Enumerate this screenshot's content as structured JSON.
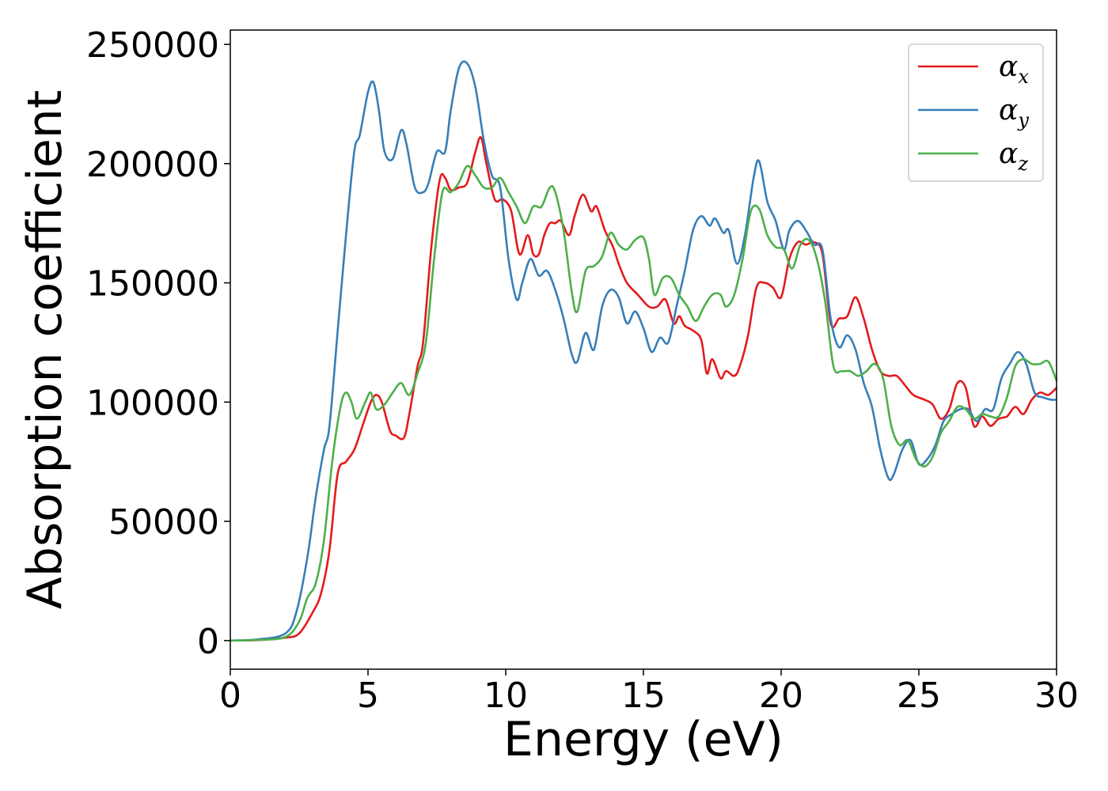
{
  "chart_data": {
    "type": "line",
    "title": "",
    "xlabel": "Energy (eV)",
    "ylabel": "Absorption coefficient",
    "xlim": [
      0,
      30
    ],
    "ylim": [
      -12000,
      256000
    ],
    "xticks": [
      0,
      5,
      10,
      15,
      20,
      25,
      30
    ],
    "yticks": [
      0,
      50000,
      100000,
      150000,
      200000,
      250000
    ],
    "grid": false,
    "legend_position": "top-right",
    "series": [
      {
        "name": "α",
        "subscript": "x",
        "color": "#e41a1c",
        "x": [
          0,
          1,
          2,
          2.5,
          3,
          3.3,
          3.6,
          3.9,
          4.2,
          4.5,
          4.8,
          5.1,
          5.3,
          5.5,
          5.8,
          6.0,
          6.3,
          6.5,
          6.8,
          7.0,
          7.3,
          7.6,
          7.8,
          8.0,
          8.3,
          8.6,
          8.9,
          9.1,
          9.3,
          9.6,
          9.9,
          10.2,
          10.5,
          10.8,
          11.0,
          11.2,
          11.4,
          11.6,
          11.8,
          12.0,
          12.3,
          12.5,
          12.8,
          13.1,
          13.3,
          13.6,
          13.9,
          14.1,
          14.4,
          14.8,
          15.2,
          15.5,
          15.8,
          16.1,
          16.3,
          16.5,
          16.8,
          17.1,
          17.3,
          17.5,
          17.8,
          18.0,
          18.3,
          18.5,
          18.8,
          19.1,
          19.4,
          19.7,
          20.0,
          20.3,
          20.6,
          20.9,
          21.2,
          21.5,
          21.8,
          22.1,
          22.4,
          22.7,
          23.0,
          23.3,
          23.6,
          23.9,
          24.2,
          24.5,
          24.8,
          25.2,
          25.5,
          25.8,
          26.1,
          26.4,
          26.7,
          27.0,
          27.3,
          27.6,
          27.9,
          28.2,
          28.5,
          28.8,
          29.1,
          29.4,
          29.7,
          30.0
        ],
        "values": [
          0,
          200,
          1200,
          3000,
          12000,
          20000,
          38000,
          70000,
          75000,
          80000,
          90000,
          100000,
          103000,
          100000,
          88000,
          86000,
          85000,
          95000,
          115000,
          125000,
          165000,
          193000,
          194000,
          189000,
          190000,
          192000,
          205000,
          211000,
          200000,
          185000,
          185000,
          180000,
          162000,
          170000,
          162000,
          162000,
          170000,
          175000,
          175000,
          176000,
          170000,
          178000,
          187000,
          180000,
          182000,
          172000,
          165000,
          158000,
          150000,
          145000,
          140000,
          140000,
          143000,
          133000,
          136000,
          132000,
          130000,
          126000,
          112000,
          118000,
          110000,
          113000,
          111000,
          115000,
          128000,
          148000,
          150000,
          148000,
          144000,
          160000,
          167000,
          166000,
          167000,
          162000,
          133000,
          135000,
          136000,
          144000,
          135000,
          122000,
          113000,
          111000,
          111000,
          107000,
          103000,
          101000,
          99000,
          93000,
          97000,
          108000,
          106000,
          90000,
          94000,
          90000,
          93000,
          94000,
          98000,
          95000,
          101000,
          104000,
          103000,
          106000
        ]
      },
      {
        "name": "α",
        "subscript": "y",
        "color": "#377eb8",
        "x": [
          0,
          1,
          2,
          2.4,
          2.8,
          3.1,
          3.4,
          3.6,
          3.9,
          4.2,
          4.5,
          4.7,
          5.0,
          5.2,
          5.4,
          5.6,
          5.9,
          6.2,
          6.4,
          6.7,
          7.0,
          7.2,
          7.5,
          7.8,
          8.0,
          8.3,
          8.6,
          8.9,
          9.2,
          9.5,
          9.8,
          10.1,
          10.4,
          10.6,
          10.9,
          11.2,
          11.5,
          11.8,
          12.1,
          12.4,
          12.6,
          12.9,
          13.2,
          13.5,
          13.8,
          14.1,
          14.4,
          14.7,
          15.0,
          15.3,
          15.6,
          15.9,
          16.2,
          16.5,
          16.8,
          17.1,
          17.4,
          17.6,
          17.9,
          18.1,
          18.4,
          18.7,
          19.0,
          19.2,
          19.5,
          19.8,
          20.1,
          20.3,
          20.6,
          20.9,
          21.2,
          21.5,
          21.8,
          22.1,
          22.4,
          22.7,
          23.0,
          23.3,
          23.6,
          23.9,
          24.1,
          24.4,
          24.7,
          25.0,
          25.3,
          25.6,
          25.9,
          26.2,
          26.5,
          26.8,
          27.1,
          27.4,
          27.7,
          28.0,
          28.3,
          28.6,
          28.9,
          29.2,
          29.5,
          29.8,
          30.0
        ],
        "values": [
          0,
          500,
          3000,
          12000,
          35000,
          60000,
          80000,
          90000,
          130000,
          170000,
          205000,
          212000,
          230000,
          234000,
          222000,
          205000,
          202000,
          214000,
          208000,
          190000,
          188000,
          192000,
          205000,
          205000,
          222000,
          240000,
          242000,
          232000,
          210000,
          195000,
          190000,
          160000,
          143000,
          150000,
          160000,
          153000,
          155000,
          147000,
          135000,
          120000,
          117000,
          129000,
          122000,
          140000,
          147000,
          144000,
          133000,
          138000,
          131000,
          121000,
          127000,
          125000,
          140000,
          155000,
          172000,
          178000,
          174000,
          177000,
          171000,
          172000,
          158000,
          171000,
          194000,
          201000,
          184000,
          176000,
          164000,
          172000,
          176000,
          172000,
          166000,
          164000,
          135000,
          123000,
          128000,
          122000,
          108000,
          98000,
          80000,
          68000,
          70000,
          80000,
          84000,
          74000,
          76000,
          82000,
          92000,
          95000,
          97000,
          97000,
          92000,
          97000,
          97000,
          110000,
          116000,
          121000,
          116000,
          104000,
          102000,
          101000,
          101000
        ]
      },
      {
        "name": "α",
        "subscript": "z",
        "color": "#4daf4a",
        "x": [
          0,
          1,
          2,
          2.5,
          2.8,
          3.1,
          3.4,
          3.7,
          4.0,
          4.2,
          4.4,
          4.6,
          4.9,
          5.1,
          5.3,
          5.6,
          5.9,
          6.2,
          6.5,
          6.8,
          7.1,
          7.4,
          7.7,
          8.0,
          8.3,
          8.6,
          8.9,
          9.2,
          9.5,
          9.8,
          10.1,
          10.4,
          10.7,
          11.0,
          11.3,
          11.6,
          11.8,
          12.1,
          12.4,
          12.6,
          12.9,
          13.2,
          13.5,
          13.8,
          14.1,
          14.4,
          14.7,
          15.0,
          15.2,
          15.4,
          15.7,
          16.0,
          16.3,
          16.6,
          16.9,
          17.2,
          17.5,
          17.8,
          18.0,
          18.3,
          18.6,
          18.9,
          19.2,
          19.5,
          19.8,
          20.1,
          20.4,
          20.7,
          21.0,
          21.3,
          21.6,
          21.9,
          22.2,
          22.5,
          22.8,
          23.1,
          23.4,
          23.7,
          24.0,
          24.3,
          24.6,
          24.9,
          25.2,
          25.5,
          25.8,
          26.1,
          26.4,
          26.7,
          27.0,
          27.3,
          27.6,
          27.9,
          28.2,
          28.5,
          28.8,
          29.1,
          29.4,
          29.7,
          30.0
        ],
        "values": [
          0,
          300,
          1500,
          8000,
          18000,
          24000,
          42000,
          75000,
          98000,
          104000,
          100000,
          93000,
          100000,
          104000,
          97000,
          99000,
          104000,
          108000,
          103000,
          112000,
          125000,
          160000,
          188000,
          188000,
          192000,
          199000,
          195000,
          190000,
          190000,
          194000,
          188000,
          182000,
          175000,
          182000,
          182000,
          190000,
          188000,
          172000,
          146000,
          138000,
          155000,
          157000,
          161000,
          171000,
          166000,
          164000,
          168000,
          169000,
          160000,
          145000,
          152000,
          152000,
          145000,
          140000,
          134000,
          140000,
          145000,
          145000,
          140000,
          145000,
          160000,
          180000,
          181000,
          170000,
          165000,
          164000,
          156000,
          166000,
          168000,
          160000,
          142000,
          115000,
          113000,
          113000,
          111000,
          113000,
          116000,
          110000,
          90000,
          82000,
          84000,
          76000,
          73000,
          77000,
          87000,
          92000,
          98000,
          97000,
          93000,
          95000,
          94000,
          94000,
          102000,
          115000,
          118000,
          116000,
          116000,
          117000,
          109000
        ]
      }
    ]
  }
}
